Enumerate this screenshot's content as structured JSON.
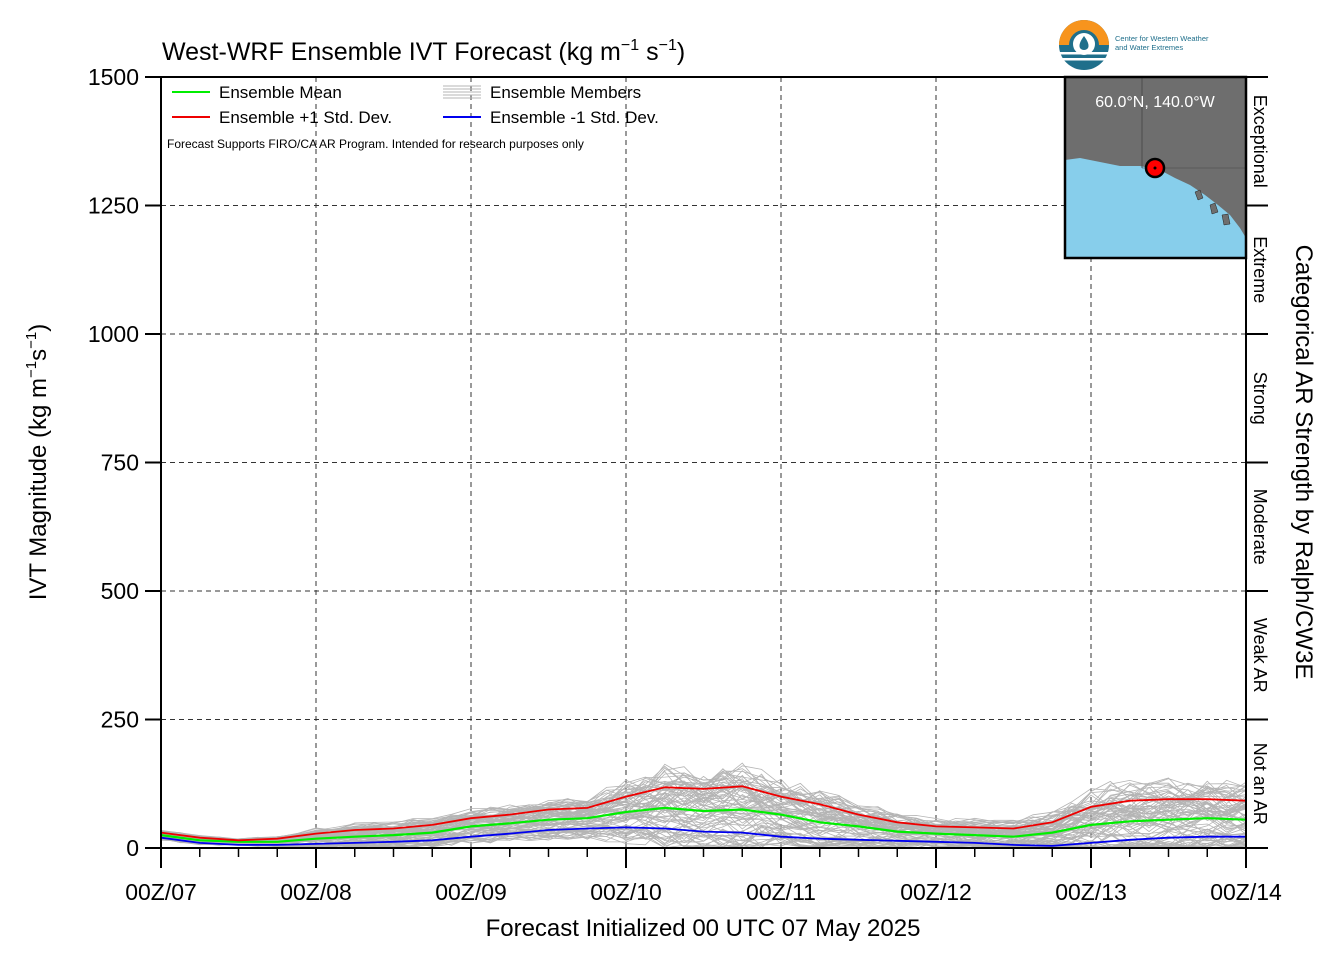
{
  "chart_data": {
    "type": "line",
    "title_main": "West-WRF Ensemble IVT Forecast (kg m",
    "title_exp1": "−1",
    "title_mid": " s",
    "title_exp2": "−1",
    "title_end": ")",
    "ylabel_main": "IVT Magnitude (kg m",
    "ylabel_exp1": "−1",
    "ylabel_mid": "s",
    "ylabel_exp2": "−1",
    "ylabel_end": ")",
    "right_label": "Categorical AR Strength by Ralph/CW3E",
    "xlabel": "Forecast Initialized 00 UTC 07 May 2025",
    "ylim": [
      0,
      1500
    ],
    "xlim": [
      0,
      168
    ],
    "yticks": [
      "0",
      "250",
      "500",
      "750",
      "1000",
      "1250",
      "1500"
    ],
    "xticks": [
      "00Z/07",
      "00Z/08",
      "00Z/09",
      "00Z/10",
      "00Z/11",
      "00Z/12",
      "00Z/13",
      "00Z/14"
    ],
    "grid": true,
    "categories_right": [
      "Not an AR",
      "Weak AR",
      "Moderate",
      "Strong",
      "Extreme",
      "Exceptional"
    ],
    "legend": {
      "placement": "top-left",
      "mean": "Ensemble Mean",
      "plus": "Ensemble +1 Std. Dev.",
      "members": "Ensemble Members",
      "minus": "Ensemble -1 Std. Dev."
    },
    "note": "Forecast Supports FIRO/CA AR Program. Intended for research purposes only",
    "inset_label": "60.0°N, 140.0°W",
    "logo_text_1": "Center for Western Weather",
    "logo_text_2": "and Water Extremes",
    "colors": {
      "mean": "#00ee00",
      "plus": "#ee0000",
      "minus": "#0000ee",
      "members": "#b4b4b4",
      "ocean": "#87ceeb",
      "land": "#6e6e6e",
      "logo_orange": "#f7941d",
      "logo_blue": "#1f6f8b"
    },
    "x": [
      0,
      6,
      12,
      18,
      24,
      30,
      36,
      42,
      48,
      54,
      60,
      66,
      72,
      78,
      84,
      90,
      96,
      102,
      108,
      114,
      120,
      126,
      132,
      138,
      144,
      150,
      156,
      162,
      168
    ],
    "series": [
      {
        "name": "Ensemble Mean",
        "values": [
          25,
          15,
          12,
          12,
          18,
          22,
          25,
          30,
          42,
          48,
          55,
          58,
          70,
          78,
          72,
          75,
          65,
          50,
          42,
          32,
          28,
          25,
          22,
          30,
          45,
          52,
          55,
          58,
          55
        ]
      },
      {
        "name": "Ensemble +1 Std. Dev.",
        "values": [
          30,
          20,
          15,
          18,
          28,
          35,
          38,
          45,
          58,
          65,
          75,
          78,
          100,
          118,
          115,
          120,
          100,
          85,
          65,
          50,
          42,
          40,
          38,
          50,
          80,
          92,
          95,
          95,
          92
        ]
      },
      {
        "name": "Ensemble -1 Std. Dev.",
        "values": [
          20,
          10,
          6,
          6,
          8,
          10,
          12,
          15,
          22,
          28,
          35,
          38,
          40,
          38,
          32,
          30,
          22,
          18,
          16,
          14,
          12,
          10,
          6,
          4,
          10,
          16,
          20,
          22,
          22
        ]
      }
    ]
  }
}
